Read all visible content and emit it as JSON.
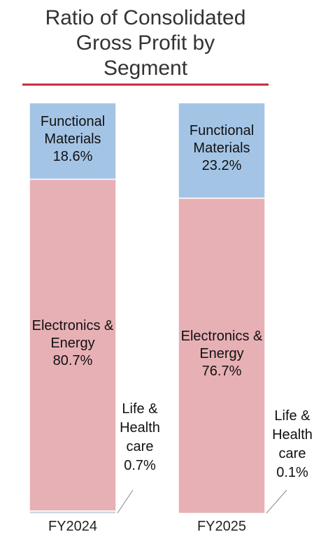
{
  "chart_data": {
    "type": "stacked-bar",
    "title": "Ratio of Consolidated Gross Profit by Segment",
    "categories": [
      "FY2024",
      "FY2025"
    ],
    "ylim": [
      0,
      100
    ],
    "series": [
      {
        "name": "Life & Health care",
        "color": "#c9d6e4",
        "values": [
          0.7,
          0.1
        ],
        "value_labels": [
          "0.7%",
          "0.1%"
        ]
      },
      {
        "name": "Electronics & Energy",
        "color": "#e7b0b5",
        "values": [
          80.7,
          76.7
        ],
        "value_labels": [
          "80.7%",
          "76.7%"
        ]
      },
      {
        "name": "Functional Materials",
        "color": "#a4c4e6",
        "values": [
          18.6,
          23.2
        ],
        "value_labels": [
          "18.6%",
          "23.2%"
        ]
      }
    ]
  }
}
